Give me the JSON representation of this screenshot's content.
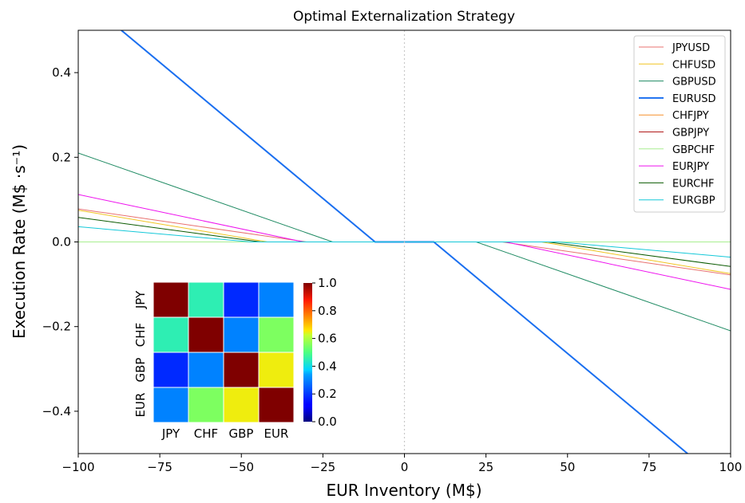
{
  "chart_data": {
    "type": "line",
    "title": "Optimal Externalization Strategy",
    "xlabel": "EUR Inventory (M$)",
    "ylabel": "Execution Rate (M$ ·s⁻¹)",
    "xlim": [
      -100,
      100
    ],
    "ylim": [
      -0.5,
      0.5
    ],
    "xticks": [
      -100,
      -75,
      -50,
      -25,
      0,
      25,
      50,
      75,
      100
    ],
    "xtick_labels": [
      "−100",
      "−75",
      "−50",
      "−25",
      "0",
      "25",
      "50",
      "75",
      "100"
    ],
    "yticks": [
      -0.4,
      -0.2,
      0.0,
      0.2,
      0.4
    ],
    "ytick_labels": [
      "−0.4",
      "−0.2",
      "0.0",
      "0.2",
      "0.4"
    ],
    "grid": false,
    "legend_position": "top-right",
    "reference_line": {
      "x": 0,
      "style": "dotted"
    },
    "series": [
      {
        "name": "JPYUSD",
        "color": "#e8706f",
        "width": 1,
        "points": [
          [
            -100,
            0.078
          ],
          [
            -30,
            0
          ],
          [
            30,
            0
          ],
          [
            100,
            -0.078
          ]
        ]
      },
      {
        "name": "CHFUSD",
        "color": "#f0c420",
        "width": 1,
        "points": [
          [
            -100,
            0.075
          ],
          [
            -42,
            0
          ],
          [
            42,
            0
          ],
          [
            100,
            -0.075
          ]
        ]
      },
      {
        "name": "GBPUSD",
        "color": "#1e8a62",
        "width": 1,
        "points": [
          [
            -100,
            0.21
          ],
          [
            -22,
            0
          ],
          [
            22,
            0
          ],
          [
            100,
            -0.21
          ]
        ]
      },
      {
        "name": "EURUSD",
        "color": "#1a6ff0",
        "width": 2,
        "points": [
          [
            -100,
            0.585
          ],
          [
            -9,
            0
          ],
          [
            9,
            0
          ],
          [
            100,
            -0.585
          ]
        ]
      },
      {
        "name": "CHFJPY",
        "color": "#f5902a",
        "width": 1,
        "points": [
          [
            -100,
            0
          ],
          [
            100,
            0
          ]
        ]
      },
      {
        "name": "GBPJPY",
        "color": "#b01818",
        "width": 1,
        "points": [
          [
            -100,
            0
          ],
          [
            100,
            0
          ]
        ]
      },
      {
        "name": "GBPCHF",
        "color": "#a8ee90",
        "width": 1,
        "points": [
          [
            -100,
            0
          ],
          [
            100,
            0
          ]
        ]
      },
      {
        "name": "EURJPY",
        "color": "#ee12ee",
        "width": 1,
        "points": [
          [
            -100,
            0.112
          ],
          [
            -31,
            0
          ],
          [
            31,
            0
          ],
          [
            100,
            -0.112
          ]
        ]
      },
      {
        "name": "EURCHF",
        "color": "#0a5a00",
        "width": 1,
        "points": [
          [
            -100,
            0.058
          ],
          [
            -44,
            0
          ],
          [
            44,
            0
          ],
          [
            100,
            -0.058
          ]
        ]
      },
      {
        "name": "EURGBP",
        "color": "#14c8d8",
        "width": 1,
        "points": [
          [
            -100,
            0.036
          ],
          [
            -47,
            0
          ],
          [
            47,
            0
          ],
          [
            100,
            -0.036
          ]
        ]
      }
    ],
    "inset_heatmap": {
      "type": "heatmap",
      "row_labels": [
        "JPY",
        "CHF",
        "GBP",
        "EUR"
      ],
      "col_labels": [
        "JPY",
        "CHF",
        "GBP",
        "EUR"
      ],
      "values": [
        [
          1.0,
          0.45,
          0.18,
          0.3
        ],
        [
          0.45,
          1.0,
          0.3,
          0.55
        ],
        [
          0.18,
          0.3,
          1.0,
          0.65
        ],
        [
          0.3,
          0.55,
          0.65,
          1.0
        ]
      ],
      "colorbar_ticks": [
        0.0,
        0.2,
        0.4,
        0.6,
        0.8,
        1.0
      ],
      "colorbar_tick_labels": [
        "0.0",
        "0.2",
        "0.4",
        "0.6",
        "0.8",
        "1.0"
      ],
      "colormap": "jet"
    }
  }
}
